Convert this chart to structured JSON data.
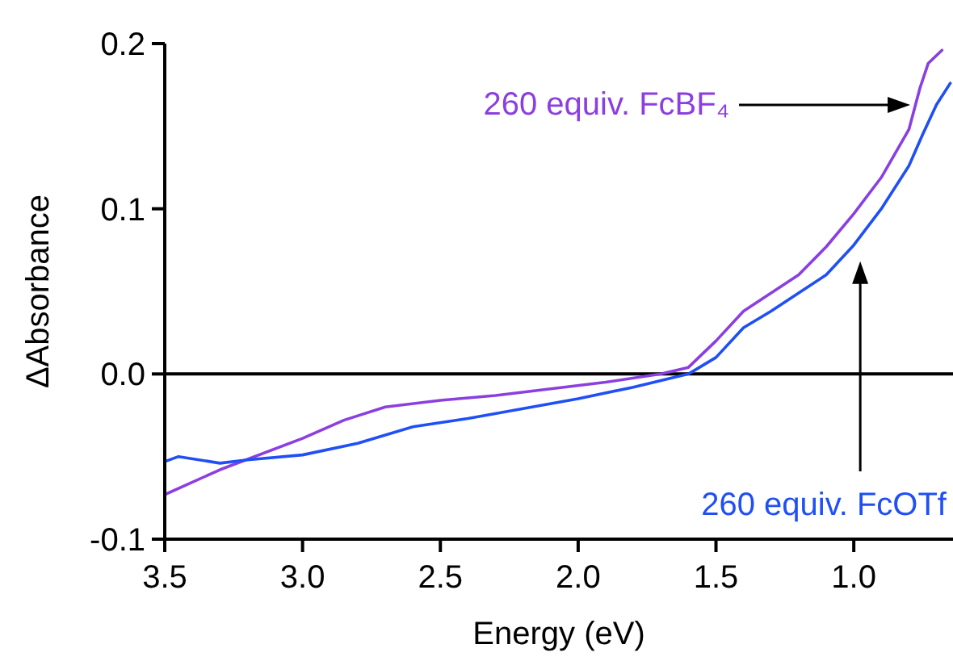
{
  "chart_data": {
    "type": "line",
    "xlabel": "Energy (eV)",
    "ylabel": "ΔAbsorbance",
    "xlim": [
      3.5,
      0.64
    ],
    "xticks": [
      3.5,
      {
        "value": 3,
        "label": "3.0"
      },
      2.5,
      {
        "value": 2,
        "label": "2.0"
      },
      1.5,
      {
        "value": 1,
        "label": "1.0"
      }
    ],
    "ylim": [
      -0.1,
      0.2
    ],
    "yticks": [
      -0.1,
      {
        "value": 0,
        "label": "0.0"
      },
      0.1,
      0.2
    ],
    "grid": false,
    "line_style": "solid",
    "ref_lines": [
      {
        "axis": "y",
        "value": 0,
        "color": "#000000"
      }
    ],
    "series": [
      {
        "name": "260 equiv. FcBF₄",
        "color": "#8b3fe0",
        "x": [
          3.5,
          3.3,
          3.0,
          2.85,
          2.7,
          2.5,
          2.3,
          2.1,
          1.9,
          1.7,
          1.6,
          1.5,
          1.4,
          1.3,
          1.2,
          1.1,
          1.0,
          0.9,
          0.8,
          0.76,
          0.73,
          0.68
        ],
        "values": [
          -0.073,
          -0.058,
          -0.039,
          -0.028,
          -0.02,
          -0.016,
          -0.013,
          -0.009,
          -0.005,
          0.0,
          0.004,
          0.02,
          0.038,
          0.049,
          0.06,
          0.077,
          0.097,
          0.119,
          0.148,
          0.173,
          0.188,
          0.196
        ]
      },
      {
        "name": "260 equiv. FcOTf",
        "color": "#1f4ff5",
        "x": [
          3.5,
          3.45,
          3.3,
          3.2,
          3.0,
          2.8,
          2.6,
          2.4,
          2.2,
          2.0,
          1.8,
          1.6,
          1.5,
          1.4,
          1.3,
          1.2,
          1.1,
          1.0,
          0.9,
          0.8,
          0.75,
          0.7,
          0.65
        ],
        "values": [
          -0.053,
          -0.05,
          -0.054,
          -0.052,
          -0.049,
          -0.042,
          -0.032,
          -0.027,
          -0.021,
          -0.015,
          -0.008,
          0.0,
          0.01,
          0.028,
          0.038,
          0.049,
          0.06,
          0.078,
          0.1,
          0.126,
          0.145,
          0.163,
          0.176
        ]
      }
    ]
  }
}
